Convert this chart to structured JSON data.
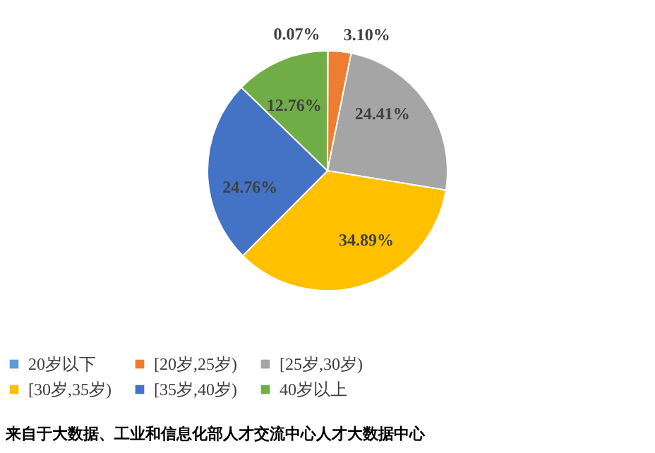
{
  "chart_data": {
    "type": "pie",
    "categories": [
      "20岁以下",
      "[20岁,25岁)",
      "[25岁,30岁)",
      "[30岁,35岁)",
      "[35岁,40岁)",
      "40岁以上"
    ],
    "values": [
      0.07,
      3.1,
      24.41,
      34.89,
      24.76,
      12.76
    ],
    "colors": [
      "#5b9bd5",
      "#ed7d31",
      "#a5a5a5",
      "#ffc000",
      "#4472c4",
      "#70ad47"
    ],
    "value_labels": [
      "0.07%",
      "3.10%",
      "24.41%",
      "34.89%",
      "24.76%",
      "12.76%"
    ],
    "legend": "bottom",
    "annotations": [
      "来自于大数据、工业和信息化部人才交流中心人才大数据中心"
    ]
  }
}
